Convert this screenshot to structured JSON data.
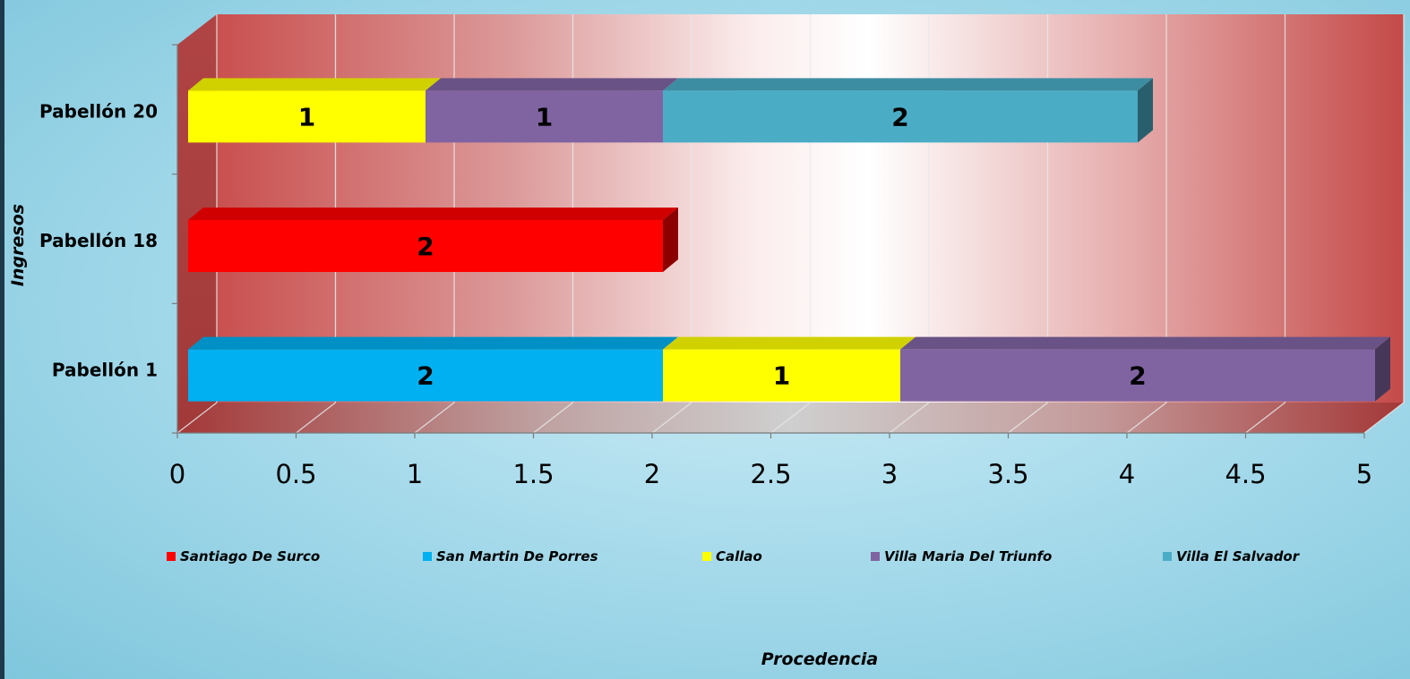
{
  "chart_data": {
    "type": "bar",
    "orientation": "horizontal",
    "stacked": true,
    "categories": [
      "Pabellón 1",
      "Pabellón 18",
      "Pabellón 20"
    ],
    "series": [
      {
        "name": "Santiago De Surco",
        "color": "#ff0000",
        "values": [
          0,
          2,
          0
        ]
      },
      {
        "name": "San Martin De Porres",
        "color": "#00b0f0",
        "values": [
          2,
          0,
          0
        ]
      },
      {
        "name": "Callao",
        "color": "#ffff00",
        "values": [
          1,
          0,
          1
        ]
      },
      {
        "name": "Villa Maria Del Triunfo",
        "color": "#8064a2",
        "values": [
          2,
          0,
          1
        ]
      },
      {
        "name": "Villa El Salvador",
        "color": "#4bacc6",
        "values": [
          0,
          0,
          2
        ]
      }
    ],
    "x_ticks": [
      "0",
      "0.5",
      "1",
      "1.5",
      "2",
      "2.5",
      "3",
      "3.5",
      "4",
      "4.5",
      "5"
    ],
    "xlim": [
      0,
      5
    ],
    "xlabel": "Procedencia",
    "ylabel": "Ingresos",
    "grid": true,
    "legend_position": "bottom"
  }
}
